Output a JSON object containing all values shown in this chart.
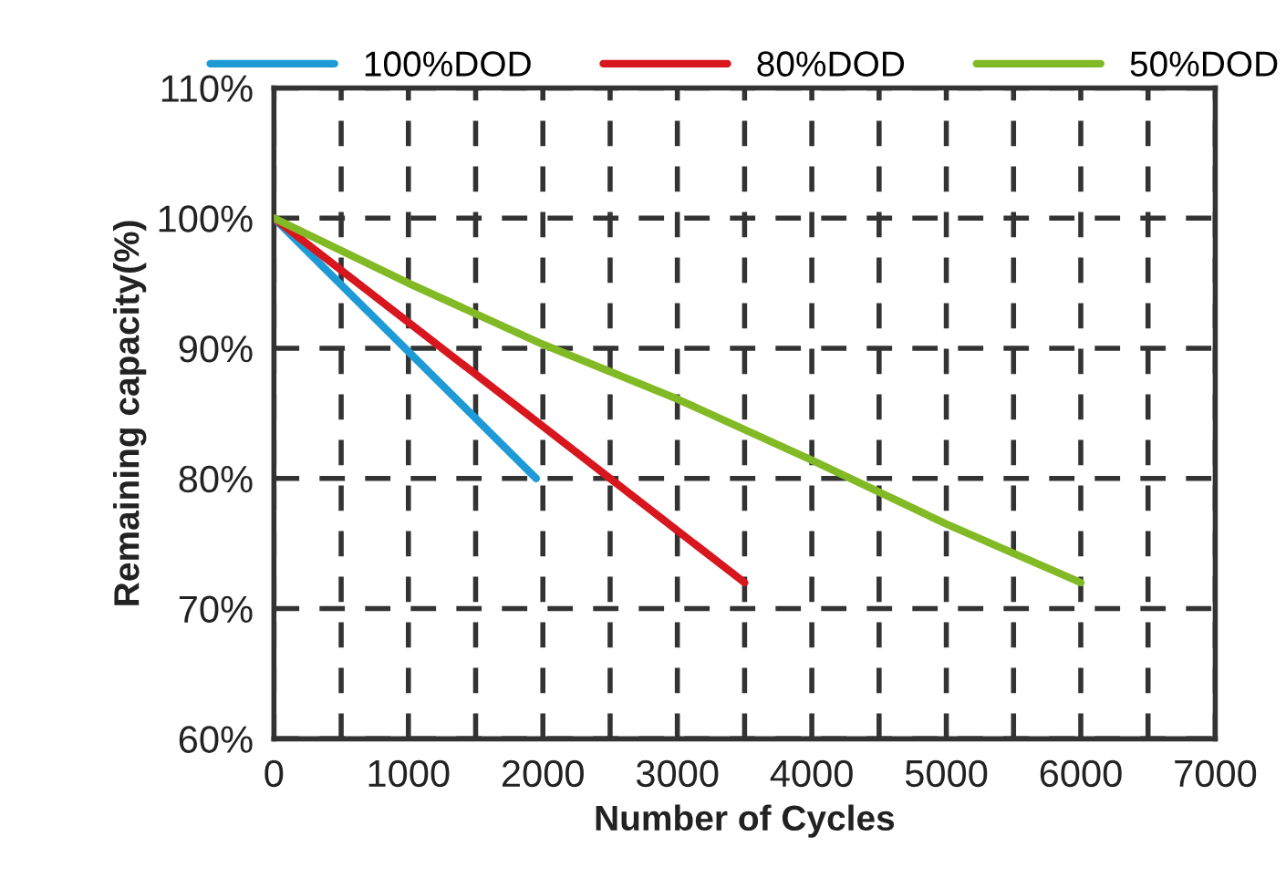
{
  "chart_data": {
    "type": "line",
    "xlabel": "Number of Cycles",
    "ylabel": "Remaining capacity(%)",
    "xlim": [
      0,
      7000
    ],
    "ylim": [
      60,
      110
    ],
    "xticks": [
      0,
      {
        "value": 500,
        "label": null
      },
      1000,
      {
        "value": 1500,
        "label": null
      },
      2000,
      {
        "value": 2500,
        "label": null
      },
      3000,
      {
        "value": 3500,
        "label": null
      },
      4000,
      {
        "value": 4500,
        "label": null
      },
      5000,
      {
        "value": 5500,
        "label": null
      },
      6000,
      {
        "value": 6500,
        "label": null
      },
      7000
    ],
    "yticks": [
      {
        "value": 60,
        "label": "60%"
      },
      {
        "value": 70,
        "label": "70%"
      },
      {
        "value": 80,
        "label": "80%"
      },
      {
        "value": 90,
        "label": "90%"
      },
      {
        "value": 100,
        "label": "100%"
      },
      {
        "value": 110,
        "label": "110%"
      }
    ],
    "grid": true,
    "legend": "top",
    "line_style": "solid",
    "marker": "none",
    "series": [
      {
        "name": "100%DOD",
        "color": "#1e9ad6",
        "x": [
          0,
          1950
        ],
        "values": [
          100,
          80
        ]
      },
      {
        "name": "80%DOD",
        "color": "#d7161d",
        "x": [
          0,
          3500
        ],
        "values": [
          100,
          72
        ]
      },
      {
        "name": "50%DOD",
        "color": "#82ba25",
        "x": [
          0,
          1000,
          2000,
          3000,
          4000,
          5000,
          6000
        ],
        "values": [
          100,
          95,
          90.3,
          86.1,
          81.4,
          76.5,
          72
        ]
      }
    ]
  }
}
